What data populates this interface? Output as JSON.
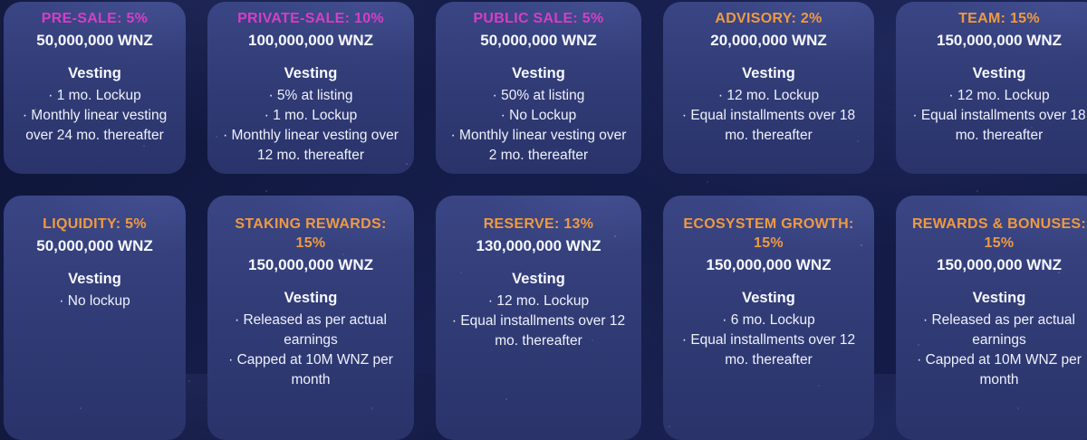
{
  "theme": {
    "pink": "#d53ec6",
    "orange": "#ef9a41",
    "text_white": "#f3f5fd",
    "card_bg_top": "#3a4584",
    "card_bg_bottom": "#2a336a",
    "page_bg": "#131a44"
  },
  "bullet_char": "·",
  "cards": [
    {
      "title": "PRE-SALE: 5%",
      "accent": "pink",
      "amount": "50,000,000 WNZ",
      "vesting_label": "Vesting",
      "bullets": [
        "1 mo. Lockup",
        "Monthly linear vesting over 24 mo. thereafter"
      ]
    },
    {
      "title": "PRIVATE-SALE: 10%",
      "accent": "pink",
      "amount": "100,000,000 WNZ",
      "vesting_label": "Vesting",
      "bullets": [
        "5% at listing",
        "1 mo. Lockup",
        "Monthly linear vesting over 12 mo. thereafter"
      ]
    },
    {
      "title": "PUBLIC SALE: 5%",
      "accent": "pink",
      "amount": "50,000,000 WNZ",
      "vesting_label": "Vesting",
      "bullets": [
        "50% at listing",
        "No Lockup",
        "Monthly linear vesting over 2 mo. thereafter"
      ]
    },
    {
      "title": "ADVISORY: 2%",
      "accent": "orange",
      "amount": "20,000,000 WNZ",
      "vesting_label": "Vesting",
      "bullets": [
        "12 mo. Lockup",
        "Equal installments over 18 mo. thereafter"
      ]
    },
    {
      "title": "TEAM: 15%",
      "accent": "orange",
      "amount": "150,000,000 WNZ",
      "vesting_label": "Vesting",
      "bullets": [
        "12 mo. Lockup",
        "Equal installments over 18 mo. thereafter"
      ]
    },
    {
      "title": "LIQUIDITY: 5%",
      "accent": "orange",
      "amount": "50,000,000 WNZ",
      "vesting_label": "Vesting",
      "bullets": [
        "No lockup"
      ]
    },
    {
      "title": "STAKING REWARDS: 15%",
      "accent": "orange",
      "amount": "150,000,000 WNZ",
      "vesting_label": "Vesting",
      "bullets": [
        "Released as per actual earnings",
        "Capped at 10M WNZ per month"
      ]
    },
    {
      "title": "RESERVE: 13%",
      "accent": "orange",
      "amount": "130,000,000 WNZ",
      "vesting_label": "Vesting",
      "bullets": [
        "12 mo. Lockup",
        "Equal installments over 12 mo. thereafter"
      ]
    },
    {
      "title": "ECOSYSTEM GROWTH: 15%",
      "accent": "orange",
      "amount": "150,000,000 WNZ",
      "vesting_label": "Vesting",
      "bullets": [
        "6 mo. Lockup",
        "Equal installments over 12 mo. thereafter"
      ]
    },
    {
      "title": "REWARDS & BONUSES: 15%",
      "accent": "orange",
      "amount": "150,000,000 WNZ",
      "vesting_label": "Vesting",
      "bullets": [
        "Released as per actual earnings",
        "Capped at 10M WNZ per month"
      ]
    }
  ]
}
